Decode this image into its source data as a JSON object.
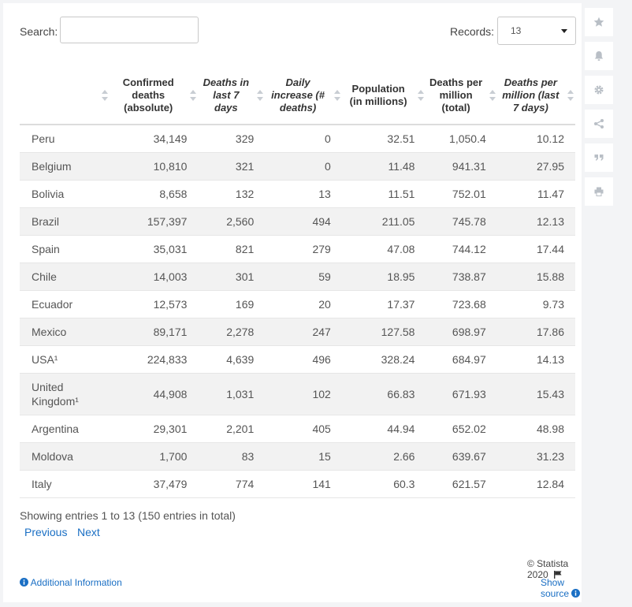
{
  "search": {
    "label": "Search:",
    "value": ""
  },
  "records": {
    "label": "Records:",
    "value": "13"
  },
  "columns": [
    {
      "label": "",
      "italic": false
    },
    {
      "label": "Confirmed deaths (absolute)",
      "italic": false
    },
    {
      "label": "Deaths in last 7 days",
      "italic": true
    },
    {
      "label": "Daily increase (# deaths)",
      "italic": true
    },
    {
      "label": "Population (in millions)",
      "italic": false
    },
    {
      "label": "Deaths per million (total)",
      "italic": false
    },
    {
      "label": "Deaths per million (last 7 days)",
      "italic": true
    }
  ],
  "rows": [
    [
      "Peru",
      "34,149",
      "329",
      "0",
      "32.51",
      "1,050.4",
      "10.12"
    ],
    [
      "Belgium",
      "10,810",
      "321",
      "0",
      "11.48",
      "941.31",
      "27.95"
    ],
    [
      "Bolivia",
      "8,658",
      "132",
      "13",
      "11.51",
      "752.01",
      "11.47"
    ],
    [
      "Brazil",
      "157,397",
      "2,560",
      "494",
      "211.05",
      "745.78",
      "12.13"
    ],
    [
      "Spain",
      "35,031",
      "821",
      "279",
      "47.08",
      "744.12",
      "17.44"
    ],
    [
      "Chile",
      "14,003",
      "301",
      "59",
      "18.95",
      "738.87",
      "15.88"
    ],
    [
      "Ecuador",
      "12,573",
      "169",
      "20",
      "17.37",
      "723.68",
      "9.73"
    ],
    [
      "Mexico",
      "89,171",
      "2,278",
      "247",
      "127.58",
      "698.97",
      "17.86"
    ],
    [
      "USA¹",
      "224,833",
      "4,639",
      "496",
      "328.24",
      "684.97",
      "14.13"
    ],
    [
      "United Kingdom¹",
      "44,908",
      "1,031",
      "102",
      "66.83",
      "671.93",
      "15.43"
    ],
    [
      "Argentina",
      "29,301",
      "2,201",
      "405",
      "44.94",
      "652.02",
      "48.98"
    ],
    [
      "Moldova",
      "1,700",
      "83",
      "15",
      "2.66",
      "639.67",
      "31.23"
    ],
    [
      "Italy",
      "37,479",
      "774",
      "141",
      "60.3",
      "621.57",
      "12.84"
    ]
  ],
  "footer": {
    "showing": "Showing entries 1 to 13 (150 entries in total)",
    "previous": "Previous",
    "next": "Next",
    "copyright": "© Statista 2020",
    "additional_info": "Additional Information",
    "show_source": "Show source"
  },
  "toolbar": [
    "star-icon",
    "bell-icon",
    "gear-icon",
    "share-icon",
    "quote-icon",
    "print-icon"
  ],
  "colors": {
    "link": "#1a6fc4",
    "stripe": "#f2f2f2",
    "icon": "#b9bfc6"
  }
}
